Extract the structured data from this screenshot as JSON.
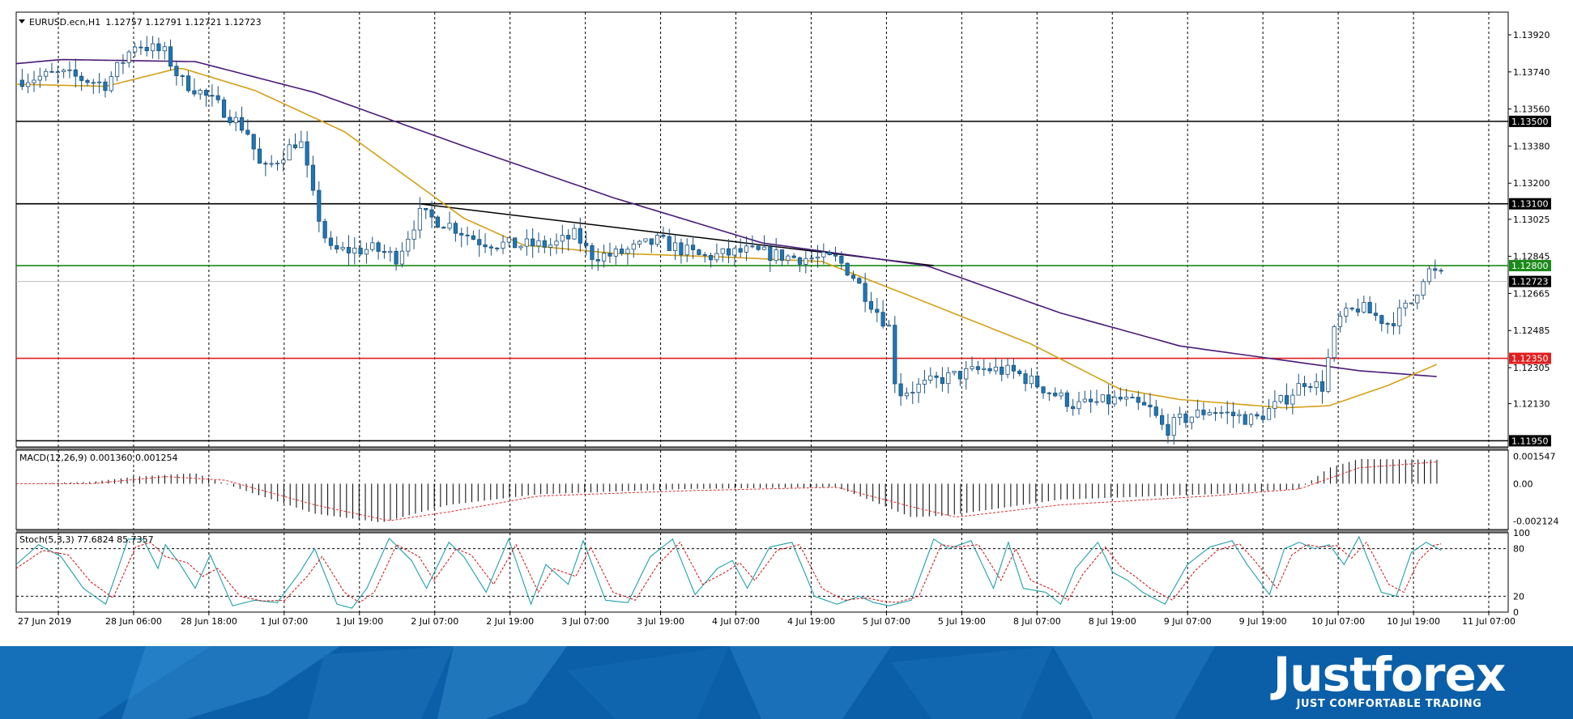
{
  "header": {
    "symbol_title": "EURUSD.ecn,H1",
    "ohlc": "1.12757 1.12791 1.12721 1.12723"
  },
  "colors": {
    "bull_fill": "#ffffff",
    "bear_fill": "#1f77b4",
    "candle_border": "#1a4f7a",
    "ma_slow": "#4b1a78",
    "ma_fast": "#d4a017",
    "line_green": "#1a8a1a",
    "line_red": "#e02020",
    "line_black": "#000000",
    "macd_signal": "#e03030",
    "stoch_main": "#20a0a8",
    "stoch_signal": "#d02020",
    "brand_bg": "#0a5fa8"
  },
  "chart_data": [
    {
      "type": "candlestick",
      "title": "EURUSD.ecn,H1",
      "ylim": [
        1.1192,
        1.1403
      ],
      "yticks": [
        "1.13920",
        "1.13740",
        "1.13560",
        "1.13380",
        "1.13200",
        "1.13025",
        "1.12845",
        "1.12665",
        "1.12485",
        "1.12305",
        "1.12130"
      ],
      "x_labels": [
        "27 Jun 2019",
        "28 Jun 06:00",
        "28 Jun 18:00",
        "1 Jul 07:00",
        "1 Jul 19:00",
        "2 Jul 07:00",
        "2 Jul 19:00",
        "3 Jul 07:00",
        "3 Jul 19:00",
        "4 Jul 07:00",
        "4 Jul 19:00",
        "5 Jul 07:00",
        "5 Jul 19:00",
        "8 Jul 07:00",
        "8 Jul 19:00",
        "9 Jul 07:00",
        "9 Jul 19:00",
        "10 Jul 07:00",
        "10 Jul 19:00",
        "11 Jul 07:00"
      ],
      "horizontal_levels": [
        {
          "value": 1.135,
          "label": "1.13500",
          "color": "#000000"
        },
        {
          "value": 1.131,
          "label": "1.13100",
          "color": "#000000"
        },
        {
          "value": 1.128,
          "label": "1.12800",
          "color": "#1a8a1a"
        },
        {
          "value": 1.1235,
          "label": "1.12350",
          "color": "#e02020"
        },
        {
          "value": 1.1195,
          "label": "1.11950",
          "color": "#000000"
        }
      ],
      "current_price": {
        "value": 1.12723,
        "label": "1.12723"
      },
      "trendline": [
        {
          "x": 0.27,
          "y": 1.131
        },
        {
          "x": 0.615,
          "y": 1.128
        }
      ],
      "close_anchors": [
        [
          0,
          1.137
        ],
        [
          0.03,
          1.1373
        ],
        [
          0.06,
          1.1368
        ],
        [
          0.08,
          1.1388
        ],
        [
          0.1,
          1.1383
        ],
        [
          0.11,
          1.137
        ],
        [
          0.12,
          1.1366
        ],
        [
          0.14,
          1.1355
        ],
        [
          0.155,
          1.1345
        ],
        [
          0.165,
          1.1325
        ],
        [
          0.18,
          1.1335
        ],
        [
          0.19,
          1.1342
        ],
        [
          0.2,
          1.131
        ],
        [
          0.21,
          1.1287
        ],
        [
          0.24,
          1.1288
        ],
        [
          0.255,
          1.1284
        ],
        [
          0.27,
          1.1305
        ],
        [
          0.29,
          1.13
        ],
        [
          0.31,
          1.1292
        ],
        [
          0.33,
          1.129
        ],
        [
          0.36,
          1.129
        ],
        [
          0.375,
          1.1295
        ],
        [
          0.385,
          1.1285
        ],
        [
          0.4,
          1.1285
        ],
        [
          0.43,
          1.1292
        ],
        [
          0.46,
          1.1284
        ],
        [
          0.49,
          1.1287
        ],
        [
          0.52,
          1.1284
        ],
        [
          0.55,
          1.1283
        ],
        [
          0.56,
          1.1276
        ],
        [
          0.57,
          1.1265
        ],
        [
          0.585,
          1.125
        ],
        [
          0.59,
          1.1218
        ],
        [
          0.6,
          1.122
        ],
        [
          0.62,
          1.1225
        ],
        [
          0.65,
          1.123
        ],
        [
          0.67,
          1.1228
        ],
        [
          0.69,
          1.122
        ],
        [
          0.71,
          1.1212
        ],
        [
          0.74,
          1.1215
        ],
        [
          0.76,
          1.121
        ],
        [
          0.77,
          1.12
        ],
        [
          0.78,
          1.1205
        ],
        [
          0.8,
          1.121
        ],
        [
          0.83,
          1.1205
        ],
        [
          0.85,
          1.1215
        ],
        [
          0.865,
          1.1225
        ],
        [
          0.875,
          1.122
        ],
        [
          0.885,
          1.1253
        ],
        [
          0.9,
          1.126
        ],
        [
          0.92,
          1.1252
        ],
        [
          0.935,
          1.1262
        ],
        [
          0.945,
          1.1278
        ],
        [
          0.955,
          1.1275
        ]
      ],
      "ma_fast_anchors": [
        [
          0,
          1.1368
        ],
        [
          0.06,
          1.1367
        ],
        [
          0.11,
          1.1376
        ],
        [
          0.16,
          1.1365
        ],
        [
          0.22,
          1.1345
        ],
        [
          0.3,
          1.1303
        ],
        [
          0.34,
          1.129
        ],
        [
          0.4,
          1.1286
        ],
        [
          0.48,
          1.1284
        ],
        [
          0.54,
          1.1282
        ],
        [
          0.6,
          1.1265
        ],
        [
          0.68,
          1.1242
        ],
        [
          0.74,
          1.122
        ],
        [
          0.78,
          1.1215
        ],
        [
          0.85,
          1.1211
        ],
        [
          0.88,
          1.1212
        ],
        [
          0.92,
          1.1222
        ],
        [
          0.955,
          1.1233
        ]
      ],
      "ma_slow_anchors": [
        [
          0,
          1.1378
        ],
        [
          0.03,
          1.138
        ],
        [
          0.12,
          1.1379
        ],
        [
          0.2,
          1.1364
        ],
        [
          0.3,
          1.1338
        ],
        [
          0.4,
          1.1313
        ],
        [
          0.5,
          1.1291
        ],
        [
          0.61,
          1.128
        ],
        [
          0.7,
          1.1257
        ],
        [
          0.78,
          1.1241
        ],
        [
          0.85,
          1.1234
        ],
        [
          0.9,
          1.1229
        ],
        [
          0.955,
          1.1226
        ]
      ]
    },
    {
      "type": "bar",
      "title": "MACD(12,26,9) 0.001360 0.001254",
      "ylim": [
        -0.0026,
        0.0019
      ],
      "yticks": [
        "0.001547",
        "0.00",
        "-0.002124"
      ],
      "hist_anchors": [
        [
          0,
          0.0
        ],
        [
          0.05,
          0.0001
        ],
        [
          0.08,
          0.0004
        ],
        [
          0.12,
          0.0006
        ],
        [
          0.15,
          -0.0003
        ],
        [
          0.2,
          -0.0017
        ],
        [
          0.245,
          -0.0022
        ],
        [
          0.29,
          -0.0012
        ],
        [
          0.35,
          -0.0006
        ],
        [
          0.45,
          -0.0003
        ],
        [
          0.55,
          -0.0002
        ],
        [
          0.58,
          -0.0012
        ],
        [
          0.6,
          -0.0019
        ],
        [
          0.625,
          -0.0018
        ],
        [
          0.7,
          -0.0009
        ],
        [
          0.8,
          -0.0006
        ],
        [
          0.86,
          -0.0003
        ],
        [
          0.88,
          0.0009
        ],
        [
          0.9,
          0.0014
        ],
        [
          0.955,
          0.00136
        ]
      ],
      "signal_anchors": [
        [
          0,
          0.0
        ],
        [
          0.05,
          0.0
        ],
        [
          0.1,
          0.0004
        ],
        [
          0.14,
          0.0002
        ],
        [
          0.2,
          -0.0012
        ],
        [
          0.25,
          -0.0021
        ],
        [
          0.29,
          -0.0016
        ],
        [
          0.35,
          -0.0007
        ],
        [
          0.45,
          -0.0004
        ],
        [
          0.55,
          -0.0002
        ],
        [
          0.6,
          -0.0013
        ],
        [
          0.63,
          -0.0019
        ],
        [
          0.7,
          -0.0012
        ],
        [
          0.8,
          -0.0007
        ],
        [
          0.86,
          -0.0003
        ],
        [
          0.9,
          0.0009
        ],
        [
          0.955,
          0.00125
        ]
      ]
    },
    {
      "type": "line",
      "title": "Stoch(5,3,3) 77.6824 85.7357",
      "ylim": [
        0,
        100
      ],
      "yticks": [
        "100",
        "80",
        "20",
        "0"
      ],
      "levels": [
        80,
        20
      ],
      "k_anchors": [
        [
          0,
          60
        ],
        [
          0.015,
          85
        ],
        [
          0.03,
          70
        ],
        [
          0.045,
          30
        ],
        [
          0.06,
          10
        ],
        [
          0.075,
          92
        ],
        [
          0.085,
          92
        ],
        [
          0.095,
          55
        ],
        [
          0.1,
          85
        ],
        [
          0.11,
          60
        ],
        [
          0.12,
          30
        ],
        [
          0.13,
          72
        ],
        [
          0.145,
          8
        ],
        [
          0.16,
          15
        ],
        [
          0.175,
          12
        ],
        [
          0.19,
          50
        ],
        [
          0.2,
          80
        ],
        [
          0.215,
          10
        ],
        [
          0.225,
          5
        ],
        [
          0.235,
          30
        ],
        [
          0.25,
          93
        ],
        [
          0.265,
          65
        ],
        [
          0.275,
          30
        ],
        [
          0.29,
          88
        ],
        [
          0.3,
          70
        ],
        [
          0.315,
          25
        ],
        [
          0.33,
          92
        ],
        [
          0.345,
          10
        ],
        [
          0.355,
          60
        ],
        [
          0.37,
          35
        ],
        [
          0.38,
          90
        ],
        [
          0.395,
          15
        ],
        [
          0.41,
          12
        ],
        [
          0.425,
          70
        ],
        [
          0.44,
          92
        ],
        [
          0.455,
          22
        ],
        [
          0.47,
          55
        ],
        [
          0.48,
          65
        ],
        [
          0.49,
          30
        ],
        [
          0.505,
          82
        ],
        [
          0.52,
          88
        ],
        [
          0.535,
          20
        ],
        [
          0.55,
          10
        ],
        [
          0.565,
          20
        ],
        [
          0.575,
          12
        ],
        [
          0.585,
          8
        ],
        [
          0.6,
          15
        ],
        [
          0.615,
          92
        ],
        [
          0.625,
          80
        ],
        [
          0.64,
          90
        ],
        [
          0.655,
          30
        ],
        [
          0.665,
          88
        ],
        [
          0.675,
          30
        ],
        [
          0.69,
          25
        ],
        [
          0.7,
          10
        ],
        [
          0.71,
          55
        ],
        [
          0.725,
          88
        ],
        [
          0.735,
          50
        ],
        [
          0.745,
          40
        ],
        [
          0.755,
          25
        ],
        [
          0.77,
          10
        ],
        [
          0.785,
          60
        ],
        [
          0.8,
          82
        ],
        [
          0.815,
          90
        ],
        [
          0.825,
          60
        ],
        [
          0.84,
          22
        ],
        [
          0.85,
          80
        ],
        [
          0.86,
          88
        ],
        [
          0.87,
          80
        ],
        [
          0.88,
          85
        ],
        [
          0.89,
          60
        ],
        [
          0.9,
          95
        ],
        [
          0.915,
          25
        ],
        [
          0.925,
          20
        ],
        [
          0.935,
          75
        ],
        [
          0.945,
          88
        ],
        [
          0.955,
          78
        ]
      ],
      "d_anchors": [
        [
          0,
          55
        ],
        [
          0.018,
          78
        ],
        [
          0.035,
          72
        ],
        [
          0.05,
          38
        ],
        [
          0.065,
          18
        ],
        [
          0.08,
          82
        ],
        [
          0.09,
          88
        ],
        [
          0.1,
          70
        ],
        [
          0.115,
          62
        ],
        [
          0.125,
          45
        ],
        [
          0.135,
          55
        ],
        [
          0.15,
          20
        ],
        [
          0.165,
          14
        ],
        [
          0.18,
          15
        ],
        [
          0.195,
          45
        ],
        [
          0.205,
          70
        ],
        [
          0.22,
          25
        ],
        [
          0.23,
          12
        ],
        [
          0.24,
          25
        ],
        [
          0.255,
          85
        ],
        [
          0.27,
          70
        ],
        [
          0.28,
          40
        ],
        [
          0.295,
          80
        ],
        [
          0.305,
          72
        ],
        [
          0.32,
          35
        ],
        [
          0.335,
          85
        ],
        [
          0.35,
          25
        ],
        [
          0.36,
          55
        ],
        [
          0.375,
          45
        ],
        [
          0.385,
          82
        ],
        [
          0.4,
          25
        ],
        [
          0.415,
          15
        ],
        [
          0.43,
          60
        ],
        [
          0.445,
          88
        ],
        [
          0.46,
          35
        ],
        [
          0.475,
          50
        ],
        [
          0.485,
          62
        ],
        [
          0.495,
          40
        ],
        [
          0.51,
          78
        ],
        [
          0.525,
          85
        ],
        [
          0.54,
          30
        ],
        [
          0.555,
          15
        ],
        [
          0.57,
          18
        ],
        [
          0.58,
          14
        ],
        [
          0.59,
          12
        ],
        [
          0.605,
          20
        ],
        [
          0.62,
          85
        ],
        [
          0.63,
          82
        ],
        [
          0.645,
          85
        ],
        [
          0.66,
          40
        ],
        [
          0.67,
          80
        ],
        [
          0.68,
          40
        ],
        [
          0.695,
          28
        ],
        [
          0.705,
          15
        ],
        [
          0.715,
          48
        ],
        [
          0.73,
          82
        ],
        [
          0.74,
          58
        ],
        [
          0.75,
          45
        ],
        [
          0.76,
          30
        ],
        [
          0.775,
          15
        ],
        [
          0.79,
          52
        ],
        [
          0.805,
          78
        ],
        [
          0.82,
          86
        ],
        [
          0.83,
          65
        ],
        [
          0.845,
          30
        ],
        [
          0.855,
          72
        ],
        [
          0.865,
          85
        ],
        [
          0.875,
          82
        ],
        [
          0.885,
          84
        ],
        [
          0.895,
          68
        ],
        [
          0.905,
          88
        ],
        [
          0.92,
          35
        ],
        [
          0.93,
          25
        ],
        [
          0.94,
          65
        ],
        [
          0.95,
          84
        ],
        [
          0.955,
          86
        ]
      ]
    }
  ],
  "brand": {
    "name": "Justforex",
    "tagline": "JUST COMFORTABLE TRADING"
  }
}
